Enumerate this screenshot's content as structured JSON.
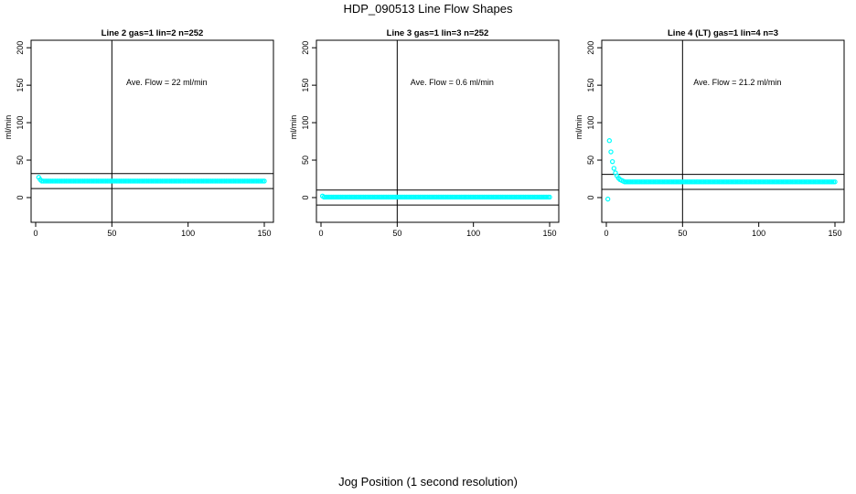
{
  "page": {
    "title": "HDP_090513  Line Flow Shapes",
    "x_title": "Jog Position (1 second resolution)"
  },
  "style": {
    "point_color": "#00ffff",
    "line_color": "#000000"
  },
  "chart_data": [
    {
      "type": "scatter",
      "title": "Line 2 gas=1 lin=2 n=252",
      "ylabel": "ml/min",
      "xlim": [
        -3,
        156
      ],
      "ylim": [
        -33,
        210
      ],
      "xticks": [
        0,
        50,
        100,
        150
      ],
      "yticks": [
        0,
        50,
        100,
        150,
        200
      ],
      "annotation": "Ave. Flow =  22  ml/min",
      "annotation_pos": [
        86,
        150
      ],
      "vline": 50,
      "hlines": [
        32,
        12
      ],
      "series": [
        {
          "values_spec": {
            "x_from": 2,
            "x_to": 150,
            "points": [
              [
                2,
                27
              ],
              [
                3,
                24
              ]
            ],
            "plateau": 22
          }
        }
      ]
    },
    {
      "type": "scatter",
      "title": "Line 3 gas=1 lin=3 n=252",
      "ylabel": "ml/min",
      "xlim": [
        -3,
        156
      ],
      "ylim": [
        -33,
        210
      ],
      "xticks": [
        0,
        50,
        100,
        150
      ],
      "yticks": [
        0,
        50,
        100,
        150,
        200
      ],
      "annotation": "Ave. Flow =  0.6  ml/min",
      "annotation_pos": [
        86,
        150
      ],
      "vline": 50,
      "hlines": [
        10,
        -10
      ],
      "series": [
        {
          "values_spec": {
            "x_from": 1,
            "x_to": 150,
            "points": [
              [
                1,
                2
              ]
            ],
            "plateau": 0.6
          }
        }
      ]
    },
    {
      "type": "scatter",
      "title": "Line 4 (LT) gas=1 lin=4 n=3",
      "ylabel": "ml/min",
      "xlim": [
        -3,
        156
      ],
      "ylim": [
        -33,
        210
      ],
      "xticks": [
        0,
        50,
        100,
        150
      ],
      "yticks": [
        0,
        50,
        100,
        150,
        200
      ],
      "annotation": "Ave. Flow =  21.2  ml/min",
      "annotation_pos": [
        86,
        150
      ],
      "vline": 50,
      "hlines": [
        31,
        11
      ],
      "series": [
        {
          "values_spec": {
            "x_from": 1,
            "x_to": 150,
            "points": [
              [
                1,
                -2
              ],
              [
                2,
                76
              ],
              [
                3,
                61
              ],
              [
                4,
                48
              ],
              [
                5,
                39
              ],
              [
                6,
                33
              ],
              [
                7,
                29
              ],
              [
                8,
                26
              ],
              [
                9,
                24
              ],
              [
                10,
                23
              ],
              [
                11,
                22
              ]
            ],
            "plateau": 21
          }
        }
      ]
    }
  ]
}
